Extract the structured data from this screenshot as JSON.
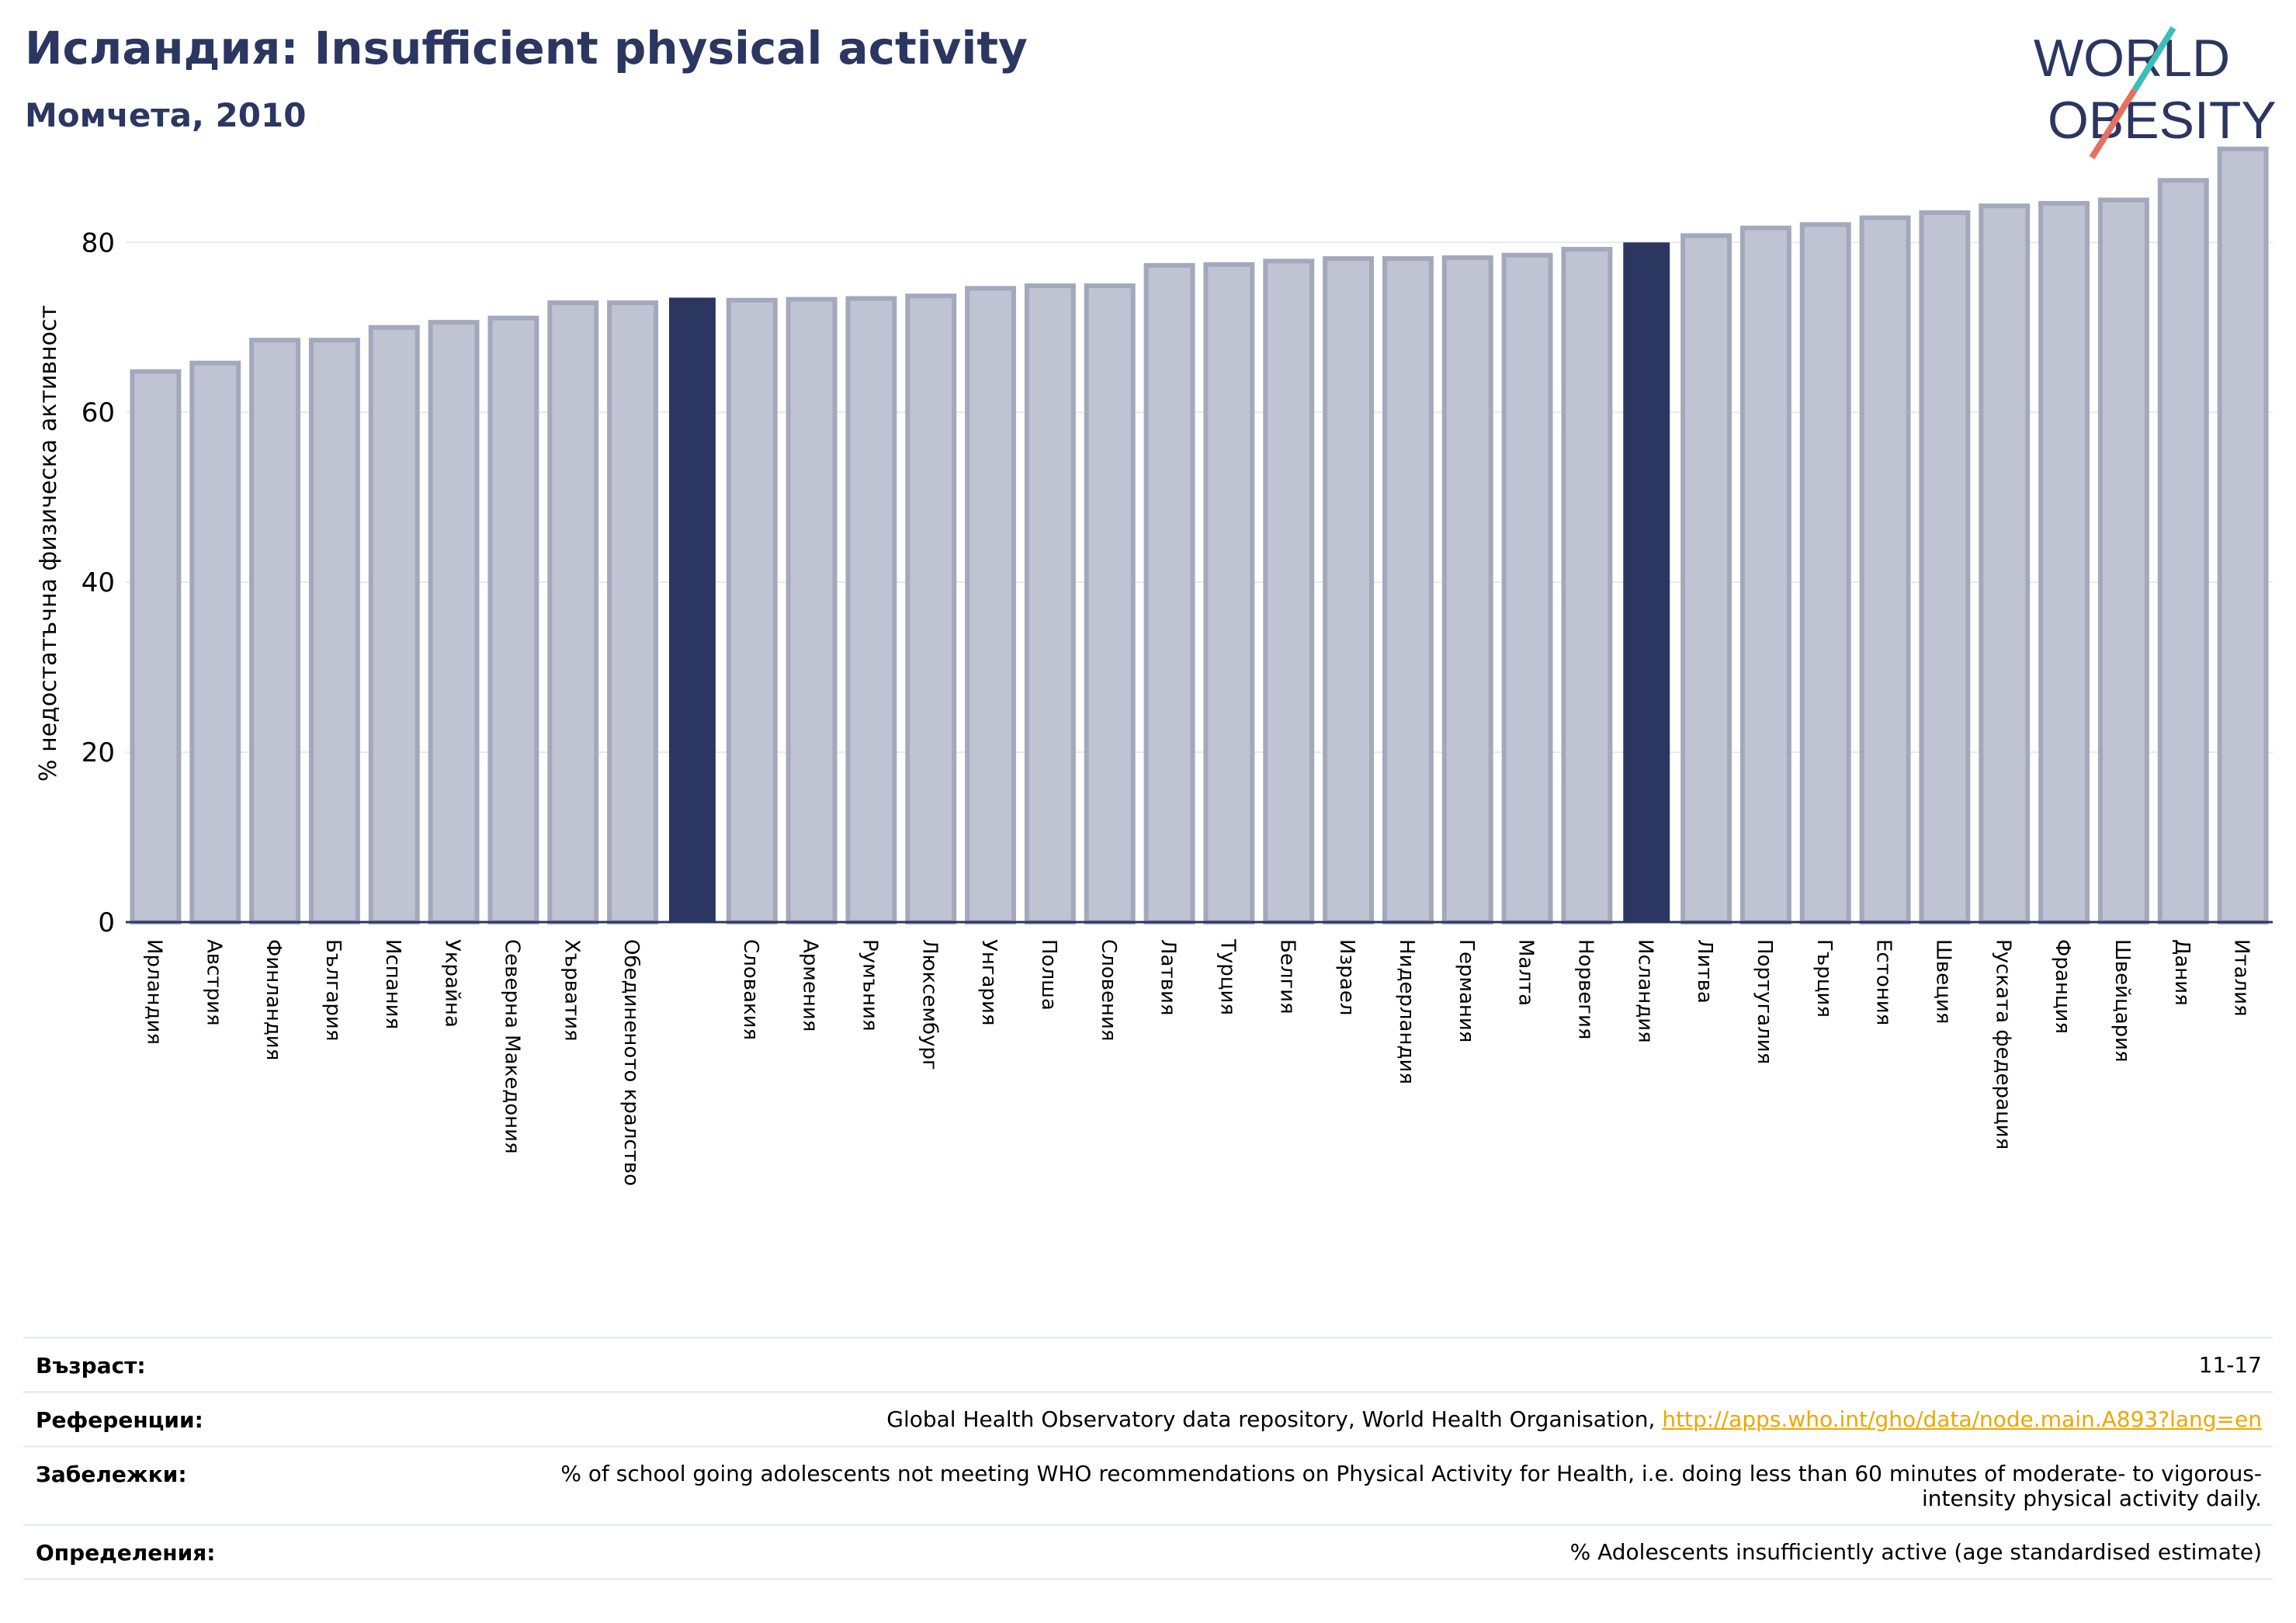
{
  "header": {
    "title": "Исландия: Insufficient physical activity",
    "subtitle": "Момчета, 2010"
  },
  "logo": {
    "line1": "WORLD",
    "line2": "OBESITY"
  },
  "colors": {
    "bar": "#c0c3d1",
    "bar_edge": "#a3a8bd",
    "highlight": "#2b3661",
    "title": "#2b3661",
    "link": "#f0a500"
  },
  "chart_data": {
    "type": "bar",
    "ylabel": "% недостатъчна физическа активност",
    "ylim": [
      0,
      93
    ],
    "yticks": [
      0,
      20,
      40,
      60,
      80
    ],
    "grid": true,
    "categories": [
      "Ирландия",
      "Австрия",
      "Финландия",
      "България",
      "Испания",
      "Украйна",
      "Северна Македония",
      "Хърватия",
      "Обединеното кралство",
      "",
      "Словакия",
      "Армения",
      "Румъния",
      "Люксембург",
      "Унгария",
      "Полша",
      "Словения",
      "Латвия",
      "Турция",
      "Белгия",
      "Израел",
      "Нидерландия",
      "Германия",
      "Малта",
      "Норвегия",
      "Исландия",
      "Литва",
      "Португалия",
      "Гърция",
      "Естония",
      "Швеция",
      "Руската федерация",
      "Франция",
      "Швейцария",
      "Дания",
      "Италия"
    ],
    "values": [
      64.8,
      65.8,
      68.5,
      68.5,
      70.0,
      70.6,
      71.1,
      72.9,
      72.9,
      73.5,
      73.2,
      73.3,
      73.4,
      73.7,
      74.6,
      74.9,
      74.9,
      77.3,
      77.4,
      77.8,
      78.1,
      78.1,
      78.2,
      78.5,
      79.2,
      80.0,
      80.8,
      81.7,
      82.1,
      82.9,
      83.5,
      84.3,
      84.6,
      85.0,
      87.3,
      91.0
    ],
    "highlighted": [
      9,
      25
    ]
  },
  "info": {
    "age_label": "Възраст:",
    "age_value": "11-17",
    "refs_label": "Референции:",
    "refs_text": "Global Health Observatory data repository, World Health Organisation, ",
    "refs_link": "http://apps.who.int/gho/data/node.main.A893?lang=en",
    "notes_label": "Забележки:",
    "notes_value": "% of school going adolescents not meeting WHO recommendations on Physical Activity for Health, i.e. doing less than 60 minutes of moderate- to vigorous-intensity physical activity daily.",
    "defs_label": "Определения:",
    "defs_value": "% Adolescents insufficiently active (age standardised estimate)"
  }
}
